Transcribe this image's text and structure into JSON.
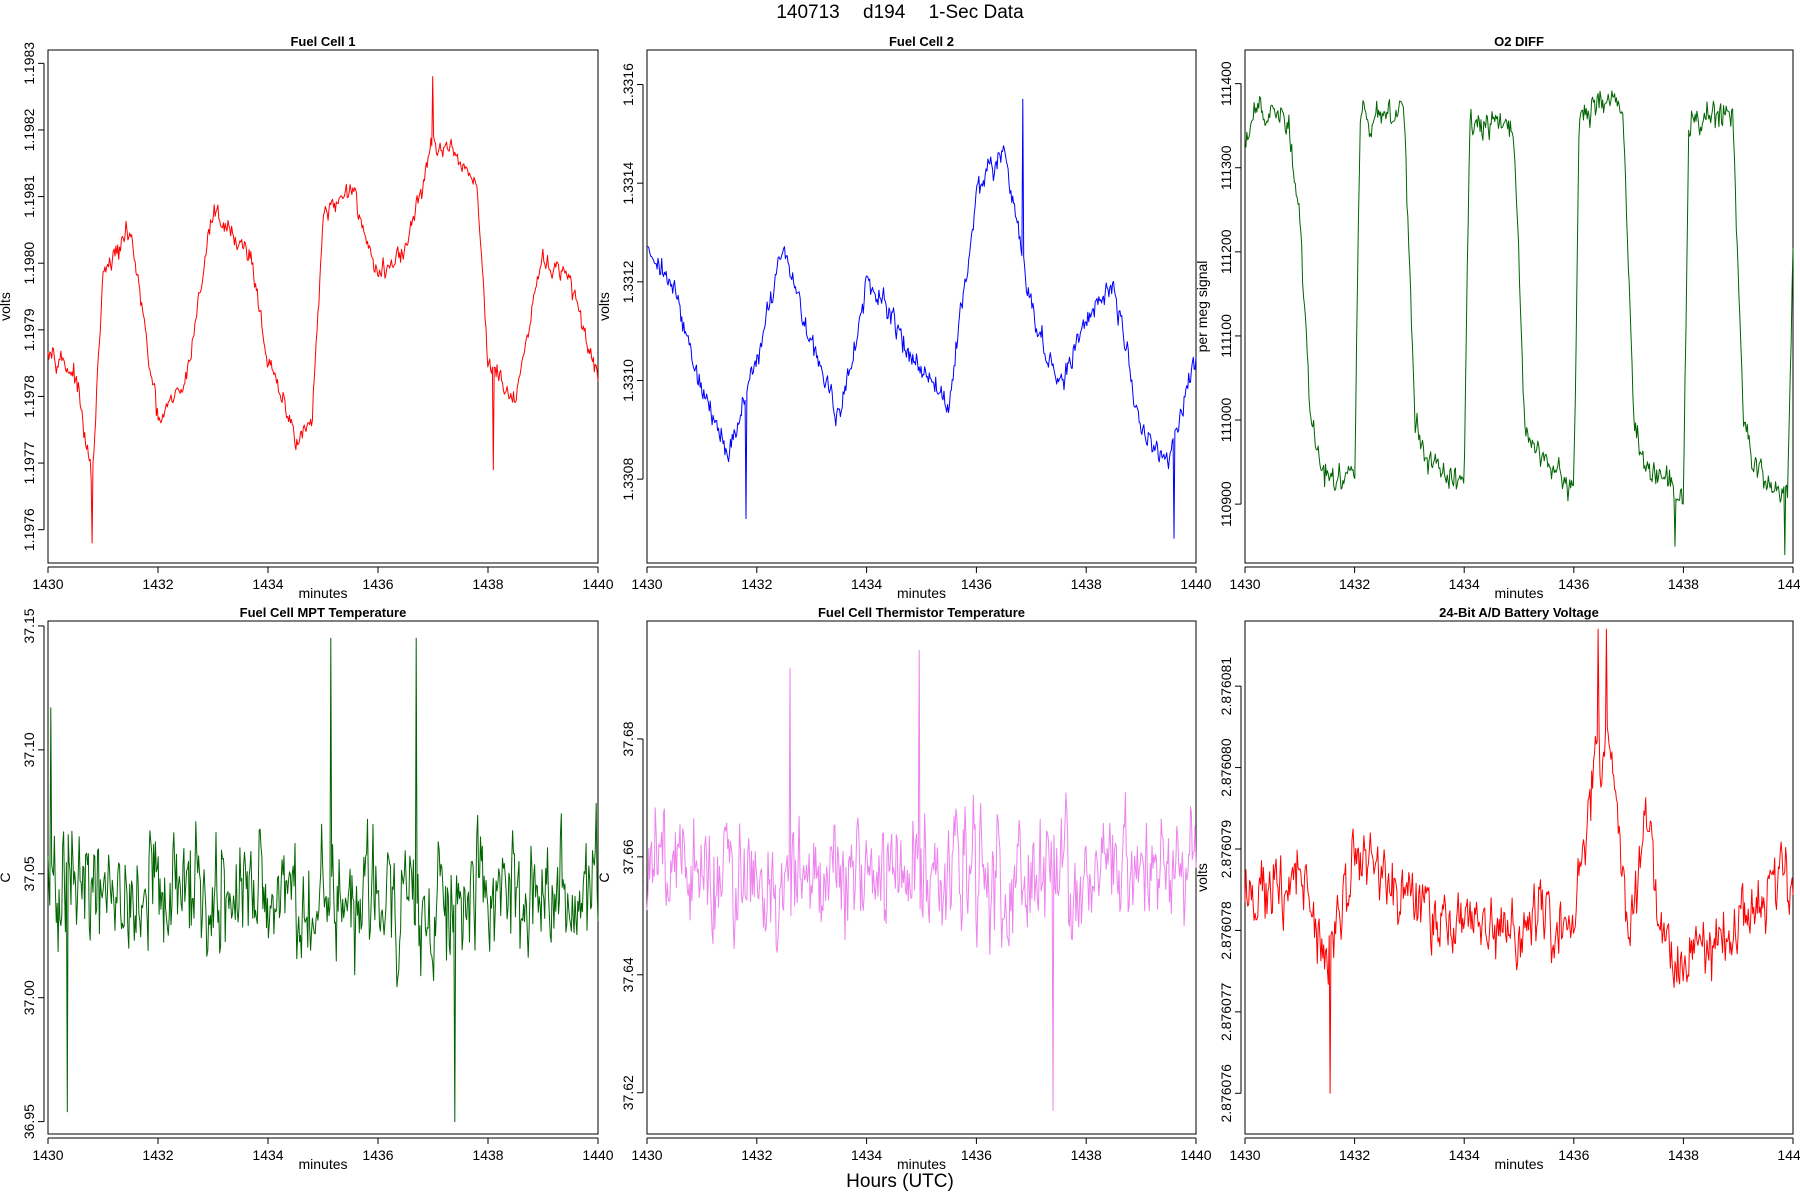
{
  "page": {
    "title_parts": [
      "140713",
      "d194",
      "1-Sec Data"
    ],
    "x_title": "Hours (UTC)"
  },
  "chart_data": [
    {
      "type": "line",
      "title": "Fuel Cell 1",
      "xlabel": "minutes",
      "ylabel": "volts",
      "color": "#ff0000",
      "xlim": [
        1430,
        1440
      ],
      "ylim": [
        1.19755,
        1.19832
      ],
      "xticks": [
        "1430",
        "1432",
        "1434",
        "1436",
        "1438",
        "1440"
      ],
      "yticks": [
        "1.1976",
        "1.1977",
        "1.1978",
        "1.1979",
        "1.1980",
        "1.1981",
        "1.1982",
        "1.1983"
      ],
      "x": [
        1430,
        1430.5,
        1430.8,
        1431,
        1431.5,
        1432,
        1432.5,
        1433,
        1433.3,
        1433.7,
        1434,
        1434.5,
        1434.8,
        1435,
        1435.5,
        1436,
        1436.5,
        1437,
        1437.5,
        1437.8,
        1438,
        1438.5,
        1439,
        1439.5,
        1440
      ],
      "values": [
        1.19788,
        1.19783,
        1.19767,
        1.19798,
        1.19805,
        1.19776,
        1.19782,
        1.19808,
        1.19805,
        1.19801,
        1.19785,
        1.19774,
        1.19776,
        1.19806,
        1.19812,
        1.19798,
        1.19802,
        1.19818,
        1.19815,
        1.19812,
        1.19785,
        1.19779,
        1.19801,
        1.19797,
        1.19783
      ],
      "noise": 2.6e-05,
      "spikes": [
        {
          "x": 1430.8,
          "value": 1.19758
        },
        {
          "x": 1437,
          "value": 1.19828
        },
        {
          "x": 1438.1,
          "value": 1.19769
        }
      ]
    },
    {
      "type": "line",
      "title": "Fuel Cell 2",
      "xlabel": "minutes",
      "ylabel": "volts",
      "color": "#0000ff",
      "xlim": [
        1430,
        1440
      ],
      "ylim": [
        1.33063,
        1.33167
      ],
      "xticks": [
        "1430",
        "1432",
        "1434",
        "1436",
        "1438",
        "1440"
      ],
      "yticks": [
        "1.3308",
        "1.3310",
        "1.3312",
        "1.3314",
        "1.3316"
      ],
      "x": [
        1430,
        1430.5,
        1431,
        1431.5,
        1432,
        1432.5,
        1433,
        1433.5,
        1434,
        1434.5,
        1435,
        1435.5,
        1436,
        1436.5,
        1437,
        1437.5,
        1438,
        1438.5,
        1439,
        1439.5,
        1440
      ],
      "values": [
        1.33128,
        1.33118,
        1.33098,
        1.33085,
        1.33105,
        1.33127,
        1.33108,
        1.33092,
        1.33119,
        1.33112,
        1.33102,
        1.33095,
        1.33138,
        1.33147,
        1.33115,
        1.33098,
        1.33112,
        1.3312,
        1.3309,
        1.33083,
        1.33105
      ],
      "noise": 4e-05,
      "spikes": [
        {
          "x": 1436.85,
          "value": 1.33157
        },
        {
          "x": 1439.6,
          "value": 1.33068
        },
        {
          "x": 1431.8,
          "value": 1.33072
        }
      ]
    },
    {
      "type": "line",
      "title": "O2 DIFF",
      "xlabel": "minutes",
      "ylabel": "per meg signal",
      "color": "#006400",
      "xlim": [
        1430,
        1440
      ],
      "ylim": [
        110830,
        111440
      ],
      "xticks": [
        "1430",
        "1432",
        "1434",
        "1436",
        "1438",
        "1440"
      ],
      "yticks": [
        "110900",
        "111000",
        "111100",
        "111200",
        "111300",
        "111400"
      ],
      "x": [
        1430,
        1430.2,
        1430.8,
        1431,
        1431.2,
        1431.4,
        1432,
        1432.1,
        1432.9,
        1433.1,
        1433.3,
        1434,
        1434.1,
        1434.9,
        1435.1,
        1435.3,
        1436,
        1436.1,
        1436.9,
        1437.1,
        1437.3,
        1438,
        1438.1,
        1438.9,
        1439.1,
        1439.3,
        1439.9,
        1440
      ],
      "values": [
        111320,
        111370,
        111350,
        111230,
        111000,
        110940,
        110930,
        111360,
        111370,
        111000,
        110950,
        110930,
        111350,
        111350,
        111000,
        110960,
        110920,
        111370,
        111380,
        111000,
        110950,
        110910,
        111360,
        111360,
        111000,
        110940,
        110910,
        111220
      ],
      "noise": 28,
      "spikes": [
        {
          "x": 1439.85,
          "value": 110840
        },
        {
          "x": 1437.85,
          "value": 110850
        }
      ]
    },
    {
      "type": "line",
      "title": "Fuel Cell MPT Temperature",
      "xlabel": "minutes",
      "ylabel": "C",
      "color": "#006400",
      "xlim": [
        1430,
        1440
      ],
      "ylim": [
        36.945,
        37.152
      ],
      "xticks": [
        "1430",
        "1432",
        "1434",
        "1436",
        "1438",
        "1440"
      ],
      "yticks": [
        "36.95",
        "37.00",
        "37.05",
        "37.10",
        "37.15"
      ],
      "x": [
        1430,
        1440
      ],
      "values": [
        37.04,
        37.04
      ],
      "noise": 0.038,
      "spikes": [
        {
          "x": 1430.05,
          "value": 37.117
        },
        {
          "x": 1430.35,
          "value": 36.954
        },
        {
          "x": 1435.15,
          "value": 37.145
        },
        {
          "x": 1436.7,
          "value": 37.145
        },
        {
          "x": 1437.4,
          "value": 36.95
        }
      ]
    },
    {
      "type": "line",
      "title": "Fuel Cell Thermistor Temperature",
      "xlabel": "minutes",
      "ylabel": "C",
      "color": "#ee82ee",
      "xlim": [
        1430,
        1440
      ],
      "ylim": [
        37.613,
        37.7
      ],
      "xticks": [
        "1430",
        "1432",
        "1434",
        "1436",
        "1438",
        "1440"
      ],
      "yticks": [
        "37.62",
        "37.64",
        "37.66",
        "37.68"
      ],
      "x": [
        1430,
        1440
      ],
      "values": [
        37.657,
        37.657
      ],
      "noise": 0.015,
      "spikes": [
        {
          "x": 1434.95,
          "value": 37.695
        },
        {
          "x": 1437.4,
          "value": 37.617
        },
        {
          "x": 1432.6,
          "value": 37.692
        }
      ]
    },
    {
      "type": "line",
      "title": "24-Bit A/D Battery Voltage",
      "xlabel": "minutes",
      "ylabel": "volts",
      "color": "#ff0000",
      "xlim": [
        1430,
        1440
      ],
      "ylim": [
        2.8760755,
        2.8760818
      ],
      "xticks": [
        "1430",
        "1432",
        "1434",
        "1436",
        "1438",
        "1440"
      ],
      "yticks": [
        "2.876076",
        "2.876077",
        "2.876078",
        "2.876079",
        "2.876080",
        "2.876081"
      ],
      "x": [
        1430,
        1431,
        1431.5,
        1432,
        1433,
        1434,
        1435,
        1436,
        1436.3,
        1436.6,
        1437,
        1437.3,
        1437.8,
        1438,
        1439,
        1439.8,
        1440
      ],
      "values": [
        2.8760784,
        2.8760787,
        2.8760775,
        2.876079,
        2.8760784,
        2.876078,
        2.876078,
        2.8760781,
        2.8760798,
        2.8760805,
        2.876078,
        2.8760792,
        2.8760774,
        2.8760777,
        2.8760781,
        2.8760787,
        2.8760786
      ],
      "noise": 6.5e-07,
      "spikes": [
        {
          "x": 1431.55,
          "value": 2.876076
        },
        {
          "x": 1436.45,
          "value": 2.8760817
        },
        {
          "x": 1436.6,
          "value": 2.8760817
        }
      ]
    }
  ]
}
